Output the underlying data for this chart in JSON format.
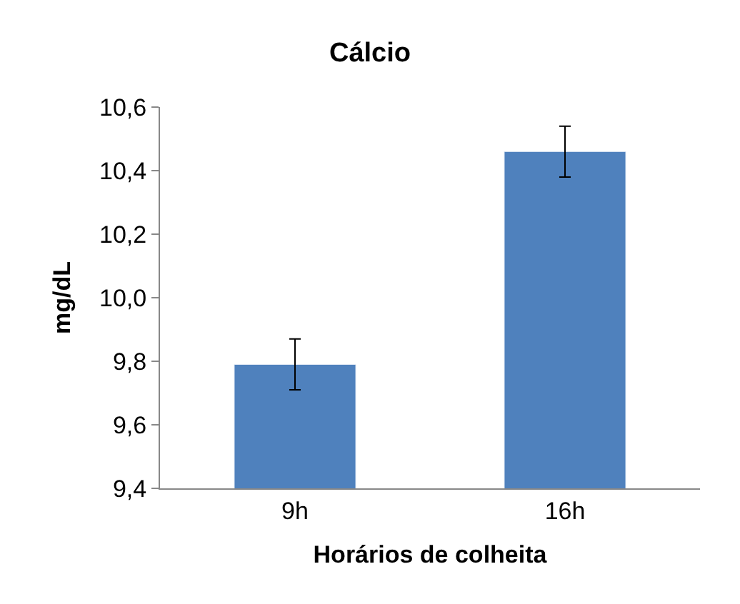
{
  "chart_data": {
    "type": "bar",
    "title": "Cálcio",
    "xlabel": "Horários de colheita",
    "ylabel": "mg/dL",
    "categories": [
      "9h",
      "16h"
    ],
    "series": [
      {
        "color": "#4f81bd",
        "values": [
          9.79,
          10.46
        ],
        "errors": [
          0.08,
          0.08
        ]
      }
    ],
    "ylim": [
      9.4,
      10.6
    ],
    "yticks": [
      {
        "value": 9.4,
        "label": "9,4"
      },
      {
        "value": 9.6,
        "label": "9,6"
      },
      {
        "value": 9.8,
        "label": "9,8"
      },
      {
        "value": 10.0,
        "label": "10,0"
      },
      {
        "value": 10.2,
        "label": "10,2"
      },
      {
        "value": 10.4,
        "label": "10,4"
      },
      {
        "value": 10.6,
        "label": "10,6"
      }
    ],
    "legend": false
  }
}
